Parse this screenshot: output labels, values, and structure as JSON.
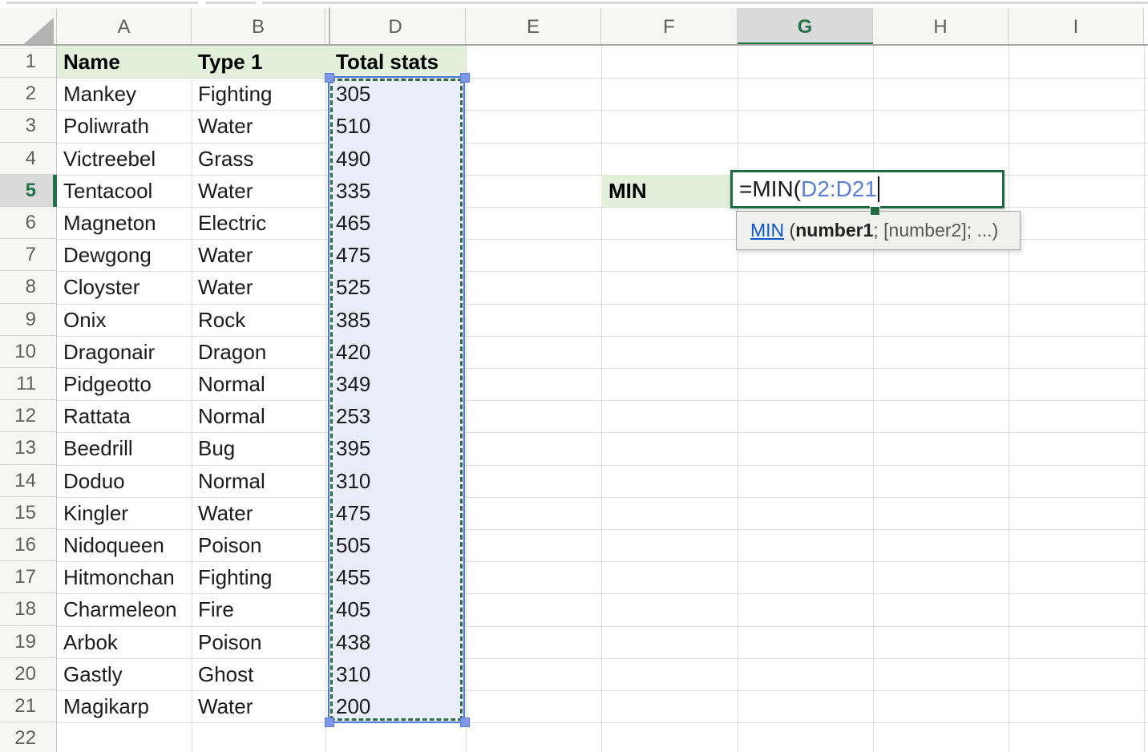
{
  "sheet": {
    "columns": [
      "A",
      "B",
      "D",
      "E",
      "F",
      "G",
      "H",
      "I"
    ],
    "active_column": "G",
    "row_numbers": [
      1,
      2,
      3,
      4,
      5,
      6,
      7,
      8,
      9,
      10,
      11,
      12,
      13,
      14,
      15,
      16,
      17,
      18,
      19,
      20,
      21,
      22
    ],
    "active_row": 5
  },
  "table": {
    "headers": {
      "name": "Name",
      "type": "Type 1",
      "total": "Total stats"
    },
    "records": [
      {
        "name": "Mankey",
        "type": "Fighting",
        "total": 305
      },
      {
        "name": "Poliwrath",
        "type": "Water",
        "total": 510
      },
      {
        "name": "Victreebel",
        "type": "Grass",
        "total": 490
      },
      {
        "name": "Tentacool",
        "type": "Water",
        "total": 335
      },
      {
        "name": "Magneton",
        "type": "Electric",
        "total": 465
      },
      {
        "name": "Dewgong",
        "type": "Water",
        "total": 475
      },
      {
        "name": "Cloyster",
        "type": "Water",
        "total": 525
      },
      {
        "name": "Onix",
        "type": "Rock",
        "total": 385
      },
      {
        "name": "Dragonair",
        "type": "Dragon",
        "total": 420
      },
      {
        "name": "Pidgeotto",
        "type": "Normal",
        "total": 349
      },
      {
        "name": "Rattata",
        "type": "Normal",
        "total": 253
      },
      {
        "name": "Beedrill",
        "type": "Bug",
        "total": 395
      },
      {
        "name": "Doduo",
        "type": "Normal",
        "total": 310
      },
      {
        "name": "Kingler",
        "type": "Water",
        "total": 475
      },
      {
        "name": "Nidoqueen",
        "type": "Poison",
        "total": 505
      },
      {
        "name": "Hitmonchan",
        "type": "Fighting",
        "total": 455
      },
      {
        "name": "Charmeleon",
        "type": "Fire",
        "total": 405
      },
      {
        "name": "Arbok",
        "type": "Poison",
        "total": 438
      },
      {
        "name": "Gastly",
        "type": "Ghost",
        "total": 310
      },
      {
        "name": "Magikarp",
        "type": "Water",
        "total": 200
      }
    ]
  },
  "cells": {
    "f5_label": "MIN"
  },
  "formula_editor": {
    "cell": "G5",
    "prefix": "=MIN(",
    "reference": "D2:D21"
  },
  "selection": {
    "range": "D2:D21"
  },
  "tooltip": {
    "function_link": "MIN",
    "open_paren": " (",
    "arg1_bold": "number1",
    "rest": "; [number2]; ...)"
  },
  "colors": {
    "accent_green": "#217346",
    "edit_border_green": "#1e6b42",
    "header_fill_green": "#e2efda",
    "selection_fill": "#e9edf8",
    "reference_border_blue": "#4c7ad3",
    "formula_reference_text_blue": "#5b7fd9",
    "tooltip_link_blue": "#0d57d2"
  }
}
